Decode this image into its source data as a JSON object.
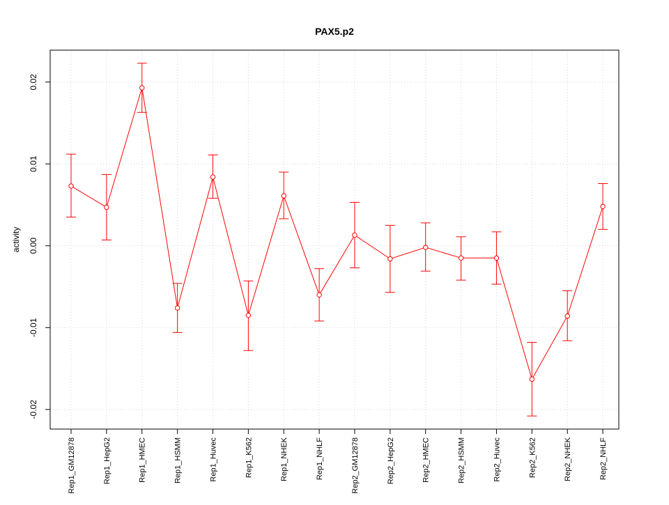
{
  "chart_data": {
    "type": "line",
    "title": "PAX5.p2",
    "xlabel": "",
    "ylabel": "activity",
    "categories": [
      "Rep1_GM12878",
      "Rep1_HepG2",
      "Rep1_HMEC",
      "Rep1_HSMM",
      "Rep1_Huvec",
      "Rep1_K562",
      "Rep1_NHEK",
      "Rep1_NHLF",
      "Rep2_GM12878",
      "Rep2_HepG2",
      "Rep2_HMEC",
      "Rep2_HSMM",
      "Rep2_Huvec",
      "Rep2_K562",
      "Rep2_NHEK",
      "Rep2_NHLF"
    ],
    "series": [
      {
        "values": [
          0.0073,
          0.0047,
          0.0193,
          -0.0076,
          0.0084,
          -0.0085,
          0.0061,
          -0.006,
          0.0013,
          -0.0016,
          -0.0002,
          -0.0015,
          -0.0015,
          -0.0163,
          -0.0086,
          0.0048
        ],
        "upper": [
          0.0112,
          0.0087,
          0.0223,
          -0.0046,
          0.0111,
          -0.0043,
          0.009,
          -0.0028,
          0.0053,
          0.0025,
          0.0028,
          0.0011,
          0.0017,
          -0.0118,
          -0.0055,
          0.0076
        ],
        "lower": [
          0.0035,
          0.0007,
          0.0163,
          -0.0106,
          0.0058,
          -0.0128,
          0.0033,
          -0.0092,
          -0.0027,
          -0.0057,
          -0.0031,
          -0.0042,
          -0.0047,
          -0.0208,
          -0.0116,
          0.002
        ],
        "color": "#ff0000"
      }
    ],
    "yticks": [
      -0.02,
      -0.01,
      0.0,
      0.01,
      0.02
    ],
    "ytick_labels": [
      "-0.02",
      "-0.01",
      "0.00",
      "0.01",
      "0.02"
    ],
    "ylim": [
      -0.0224,
      0.0239
    ],
    "grid": true
  }
}
